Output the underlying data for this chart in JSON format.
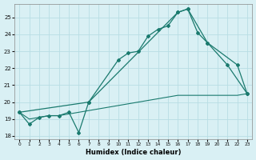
{
  "xlabel": "Humidex (Indice chaleur)",
  "bg_color": "#d9f0f4",
  "line_color": "#1a7a6e",
  "grid_color": "#b8dde4",
  "xlim": [
    -0.5,
    23.5
  ],
  "ylim": [
    17.8,
    25.8
  ],
  "xticks": [
    0,
    1,
    2,
    3,
    4,
    5,
    6,
    7,
    8,
    9,
    10,
    11,
    12,
    13,
    14,
    15,
    16,
    17,
    18,
    19,
    20,
    21,
    22,
    23
  ],
  "yticks": [
    18,
    19,
    20,
    21,
    22,
    23,
    24,
    25
  ],
  "series1_x": [
    0,
    1,
    2,
    3,
    4,
    5,
    6,
    7,
    10,
    11,
    12,
    13,
    14,
    15,
    16,
    17,
    18,
    19,
    22,
    23
  ],
  "series1_y": [
    19.4,
    18.7,
    19.1,
    19.2,
    19.2,
    19.4,
    18.2,
    20.0,
    22.5,
    22.9,
    23.0,
    23.9,
    24.3,
    24.5,
    25.3,
    25.5,
    24.1,
    23.5,
    22.2,
    20.5
  ],
  "series2_x": [
    0,
    7,
    16,
    17,
    19,
    21,
    23
  ],
  "series2_y": [
    19.4,
    20.0,
    25.3,
    25.5,
    23.5,
    22.2,
    20.5
  ],
  "series3_x": [
    0,
    1,
    2,
    3,
    4,
    5,
    6,
    7,
    8,
    9,
    10,
    11,
    12,
    13,
    14,
    15,
    16,
    17,
    18,
    19,
    20,
    21,
    22,
    23
  ],
  "series3_y": [
    19.4,
    19.0,
    19.1,
    19.2,
    19.2,
    19.3,
    19.4,
    19.5,
    19.6,
    19.7,
    19.8,
    19.9,
    20.0,
    20.1,
    20.2,
    20.3,
    20.4,
    20.4,
    20.4,
    20.4,
    20.4,
    20.4,
    20.4,
    20.5
  ]
}
